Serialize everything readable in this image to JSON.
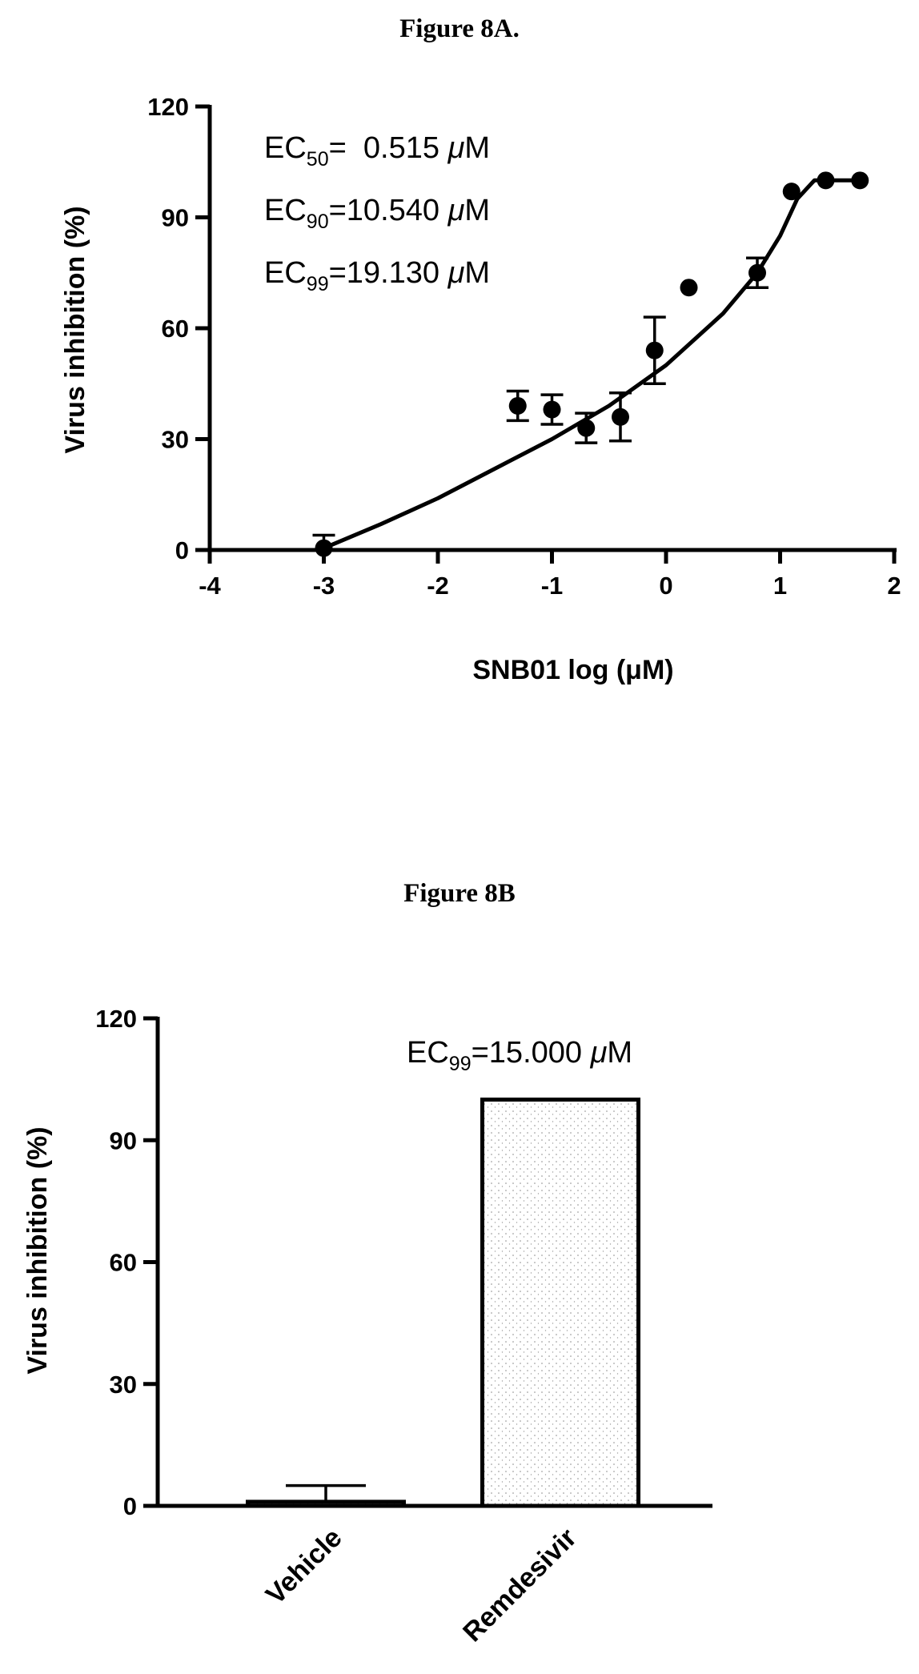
{
  "figure_a": {
    "title": "Figure 8A.",
    "annotations": [
      {
        "base": "EC",
        "sub": "50",
        "value": "=  0.515 ",
        "unit_mu": "μ",
        "unit": "M"
      },
      {
        "base": "EC",
        "sub": "90",
        "value": "=10.540 ",
        "unit_mu": "μ",
        "unit": "M"
      },
      {
        "base": "EC",
        "sub": "99",
        "value": "=19.130 ",
        "unit_mu": "μ",
        "unit": "M"
      }
    ]
  },
  "figure_b": {
    "title": "Figure 8B",
    "annotation": {
      "base": "EC",
      "sub": "99",
      "value": "=15.000 ",
      "unit_mu": "μ",
      "unit": "M"
    }
  },
  "chart_data": [
    {
      "type": "scatter",
      "xlabel": "SNB01 log (μM)",
      "ylabel": "Virus inhibition (%)",
      "xlim": [
        -4,
        2
      ],
      "ylim": [
        0,
        120
      ],
      "xticks": [
        -4,
        -3,
        -2,
        -1,
        0,
        1,
        2
      ],
      "yticks": [
        0,
        30,
        60,
        90,
        120
      ],
      "grid": false,
      "points": [
        {
          "x": -3.0,
          "y": 0.5,
          "err": 3.5
        },
        {
          "x": -1.3,
          "y": 39,
          "err": 4
        },
        {
          "x": -1.0,
          "y": 38,
          "err": 4
        },
        {
          "x": -0.7,
          "y": 33,
          "err": 4
        },
        {
          "x": -0.4,
          "y": 36,
          "err": 6.5
        },
        {
          "x": -0.1,
          "y": 54,
          "err": 9
        },
        {
          "x": 0.2,
          "y": 71,
          "err": 0
        },
        {
          "x": 0.8,
          "y": 75,
          "err": 4
        },
        {
          "x": 1.1,
          "y": 97,
          "err": 0
        },
        {
          "x": 1.4,
          "y": 100,
          "err": 0
        },
        {
          "x": 1.7,
          "y": 100,
          "err": 0
        }
      ],
      "fit_curve": [
        [
          -3.0,
          0.5
        ],
        [
          -2.5,
          7
        ],
        [
          -2.0,
          14
        ],
        [
          -1.5,
          22
        ],
        [
          -1.0,
          30
        ],
        [
          -0.5,
          39
        ],
        [
          0.0,
          50
        ],
        [
          0.5,
          64
        ],
        [
          0.8,
          75
        ],
        [
          1.0,
          85
        ],
        [
          1.15,
          95
        ],
        [
          1.3,
          100
        ],
        [
          1.7,
          100
        ]
      ]
    },
    {
      "type": "bar",
      "categories": [
        "Vehicle",
        "Remdesivir"
      ],
      "values": [
        1,
        100
      ],
      "errors": [
        4,
        0
      ],
      "ylabel": "Virus inhibition (%)",
      "ylim": [
        0,
        120
      ],
      "yticks": [
        0,
        30,
        60,
        90,
        120
      ],
      "grid": false
    }
  ]
}
